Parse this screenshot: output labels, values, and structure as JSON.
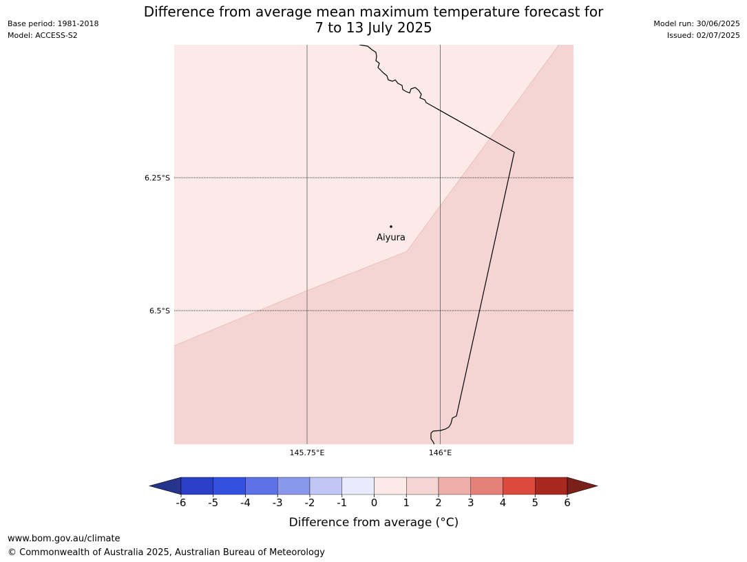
{
  "header": {
    "title_line1": "Difference from average mean maximum temperature forecast for",
    "title_line2": "7 to 13 July 2025",
    "base_period": "Base period: 1981-2018",
    "model": "Model: ACCESS-S2",
    "model_run": "Model run: 30/06/2025",
    "issued": "Issued: 02/07/2025"
  },
  "map": {
    "lat_labels": [
      "6.25°S",
      "6.5°S"
    ],
    "lon_labels": [
      "145.75°E",
      "146°E"
    ],
    "place": {
      "name": "Aiyura",
      "lat": -6.35,
      "lon": 145.9
    },
    "extent": {
      "lon_min": 145.5,
      "lon_max": 146.25,
      "lat_min": -6.75,
      "lat_max": -6.0
    },
    "fill_colors": {
      "zone_0_1": "#fbeae8",
      "zone_1_2": "#f5d5d3"
    },
    "line_colors": {
      "border": "#000000",
      "gridline": "#777777"
    }
  },
  "legend": {
    "label": "Difference from average (°C)",
    "ticks": [
      "-6",
      "-5",
      "-4",
      "-3",
      "-2",
      "-1",
      "0",
      "1",
      "2",
      "3",
      "4",
      "5",
      "6"
    ],
    "colors": [
      "#27348b",
      "#2b3fc7",
      "#3350e0",
      "#5c72e6",
      "#8a98ec",
      "#c0c7f4",
      "#e9ebfc",
      "#fbeae8",
      "#f5d5d3",
      "#eeaea9",
      "#e6817a",
      "#dc4a3d",
      "#a82820",
      "#7a1f1a"
    ]
  },
  "footer": {
    "url": "www.bom.gov.au/climate",
    "copyright": "© Commonwealth of Australia 2025, Australian Bureau of Meteorology"
  }
}
